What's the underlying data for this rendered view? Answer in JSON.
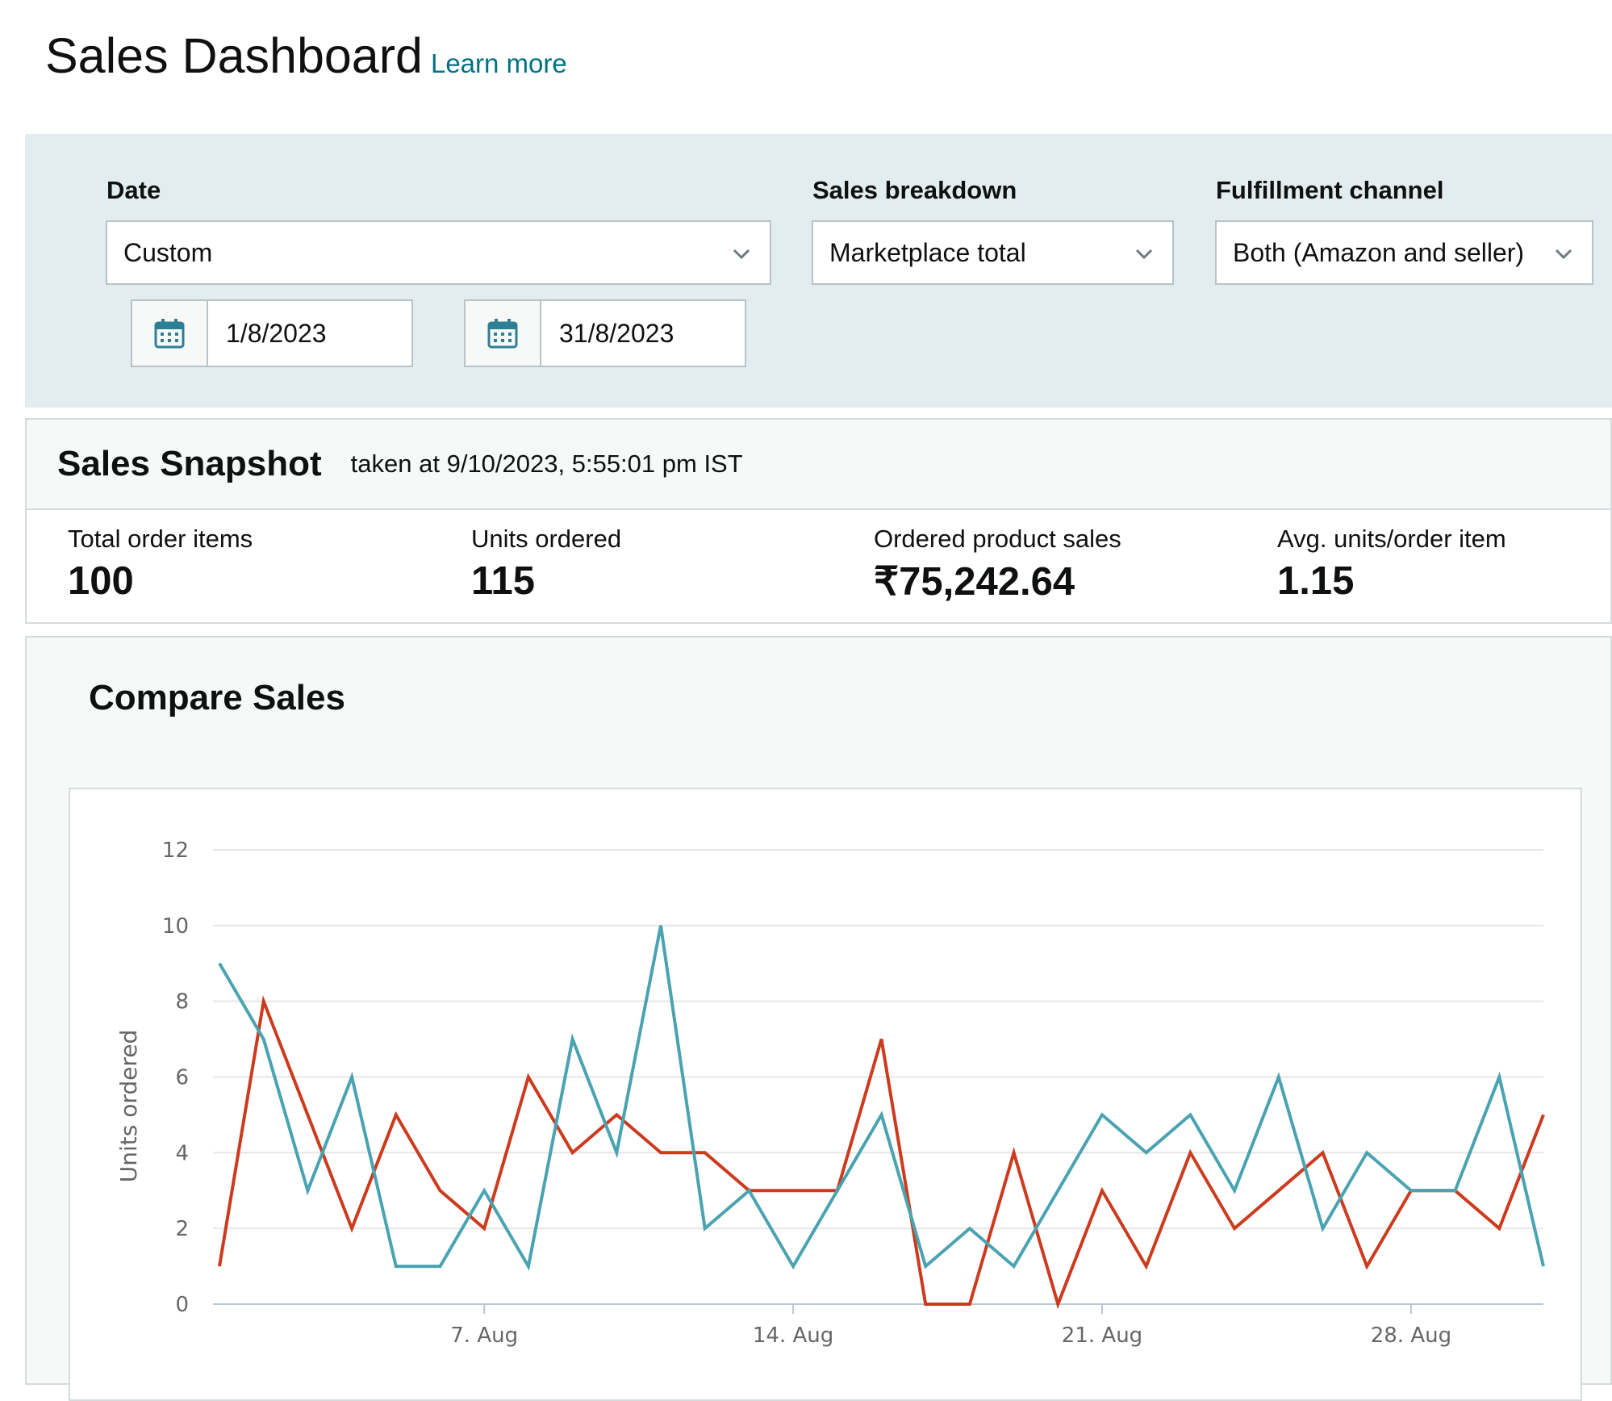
{
  "header": {
    "title": "Sales Dashboard",
    "learn_more": "Learn more"
  },
  "filters": {
    "date": {
      "label": "Date",
      "value": "Custom"
    },
    "start_date": "1/8/2023",
    "end_date": "31/8/2023",
    "sales_breakdown": {
      "label": "Sales breakdown",
      "value": "Marketplace total"
    },
    "fulfillment": {
      "label": "Fulfillment channel",
      "value": "Both (Amazon and seller)"
    }
  },
  "snapshot": {
    "title": "Sales Snapshot",
    "taken_at": "taken at 9/10/2023, 5:55:01 pm IST",
    "metrics": [
      {
        "label": "Total order items",
        "value": "100"
      },
      {
        "label": "Units ordered",
        "value": "115"
      },
      {
        "label": "Ordered product sales",
        "value": "₹75,242.64"
      },
      {
        "label": "Avg. units/order item",
        "value": "1.15"
      }
    ]
  },
  "compare": {
    "title": "Compare Sales"
  },
  "colors": {
    "series_red": "#cc3b1e",
    "series_teal": "#4aa3b1",
    "accent_link": "#007185",
    "filter_bg": "#e3ecee"
  },
  "chart_data": {
    "type": "line",
    "ylabel": "Units ordered",
    "ylim": [
      0,
      12
    ],
    "yticks": [
      "0",
      "2",
      "4",
      "6",
      "8",
      "10",
      "12"
    ],
    "xticks": [
      {
        "label": "7. Aug",
        "day": 7
      },
      {
        "label": "14. Aug",
        "day": 14
      },
      {
        "label": "21. Aug",
        "day": 21
      },
      {
        "label": "28. Aug",
        "day": 28
      }
    ],
    "x": [
      1,
      2,
      3,
      4,
      5,
      6,
      7,
      8,
      9,
      10,
      11,
      12,
      13,
      14,
      15,
      16,
      17,
      18,
      19,
      20,
      21,
      22,
      23,
      24,
      25,
      26,
      27,
      28,
      29,
      30,
      31
    ],
    "series": [
      {
        "color": "#cc3b1e",
        "values": [
          1,
          8,
          5,
          2,
          5,
          3,
          2,
          6,
          4,
          5,
          4,
          4,
          3,
          3,
          3,
          7,
          0,
          0,
          4,
          0,
          3,
          1,
          4,
          2,
          3,
          4,
          1,
          3,
          3,
          2,
          5
        ]
      },
      {
        "color": "#4aa3b1",
        "values": [
          9,
          7,
          3,
          6,
          1,
          1,
          3,
          1,
          7,
          4,
          10,
          2,
          3,
          1,
          3,
          5,
          1,
          2,
          1,
          3,
          5,
          4,
          5,
          3,
          6,
          2,
          4,
          3,
          3,
          6,
          1
        ]
      }
    ],
    "grid": true
  }
}
